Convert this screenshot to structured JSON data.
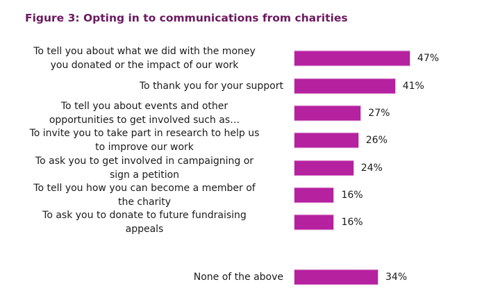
{
  "chart_data": {
    "type": "bar",
    "orientation": "horizontal",
    "title": "Figure 3: Opting in to communications from charities",
    "xlabel": "",
    "ylabel": "",
    "xlim": [
      0,
      50
    ],
    "grid": false,
    "categories": [
      "To tell you about what we did with the money\nyou donated or the impact of our work",
      "To thank you for your support",
      "To tell you about events and other\nopportunities to get involved such as…",
      "To invite you to take part in research to help us\nto improve our work",
      "To ask you to get involved in campaigning or\nsign a petition",
      "To tell you how you can become a member of\nthe charity",
      "To ask you to donate to future fundraising\nappeals",
      "None of the above"
    ],
    "values": [
      47,
      41,
      27,
      26,
      24,
      16,
      16,
      34
    ],
    "value_labels": [
      "47%",
      "41%",
      "27%",
      "26%",
      "24%",
      "16%",
      "16%",
      "34%"
    ],
    "bar_color": "#b5219f"
  }
}
